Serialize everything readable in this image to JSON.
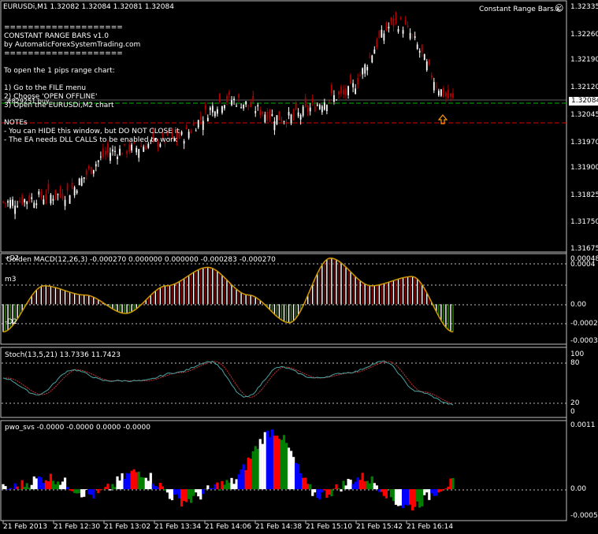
{
  "window": {
    "title": "EURUSDi,M1  1.32082 1.32084 1.32081 1.32084",
    "indicator_label": "Constant Range Bars.x",
    "smiley": "☺"
  },
  "info_text": [
    "====================",
    "    CONSTANT RANGE BARS v1.0",
    " by AutomaticForexSystemTrading.com",
    "====================",
    "",
    "To open the 1 pips range chart:",
    "",
    " 1) Go to the FILE menu",
    " 2) Choose 'OPEN OFFLINE'",
    " 3) Open the EURUSDi,M2 chart",
    "",
    "NOTEs",
    "  - You can HIDE this window, but DO NOT CLOSE it",
    "  - The EA needs DLL CALLS to be enabled to work"
  ],
  "overlay_text": "#829251 buy",
  "price_axis": [
    "1.32335",
    "1.32260",
    "1.32190",
    "1.32120",
    "1.32045",
    "1.31970",
    "1.31900",
    "1.31825",
    "1.31750",
    "1.31675"
  ],
  "current_price": "1.32084",
  "macd": {
    "title": "Golden MACD(12,26,3) -0.000270 0.000000 0.000000 -0.000283 -0.000270",
    "left_labels": [
      "+D2",
      "m3",
      "-D2"
    ],
    "axis": [
      "0.00048",
      "0.0004",
      "0.00",
      "-0.0002",
      "-0.00039"
    ]
  },
  "stoch": {
    "title": "Stoch(13,5,21) 13.7336 11.7423",
    "axis": [
      "100",
      "80",
      "20",
      "0"
    ]
  },
  "pwo": {
    "title": "pwo_svs -0.0000 -0.0000 0.0000 -0.0000",
    "axis": [
      "0.0011",
      "0.00",
      "-0.0005"
    ]
  },
  "time_axis": [
    "21 Feb 2013",
    "21 Feb 12:30",
    "21 Feb 13:02",
    "21 Feb 13:34",
    "21 Feb 14:06",
    "21 Feb 14:38",
    "21 Feb 15:10",
    "21 Feb 15:42",
    "21 Feb 16:14"
  ],
  "colors": {
    "bull": "#ffffff",
    "bear": "#b40000",
    "bid_line": "#00b400",
    "level_line": "#dc0000",
    "grid": "#c0c0c0",
    "macd_up": "#8b0000",
    "macd_down": "#2e8b00",
    "macd_line": "#cc9900",
    "stoch_main": "#4aa3a3",
    "stoch_signal": "#c03030",
    "arrow": "#ff9900"
  },
  "chart_data": [
    {
      "type": "line",
      "name": "EURUSDi,M1 price",
      "title": "EURUSDi,M1",
      "x": [
        "21 Feb 2013",
        "21 Feb 12:30",
        "21 Feb 13:02",
        "21 Feb 13:34",
        "21 Feb 14:06",
        "21 Feb 14:38",
        "21 Feb 15:10",
        "21 Feb 15:42",
        "21 Feb 16:14"
      ],
      "values": [
        1.318,
        1.3182,
        1.3194,
        1.3197,
        1.3208,
        1.3203,
        1.3209,
        1.3229,
        1.3208
      ],
      "ylim": [
        1.31675,
        1.32335
      ],
      "bid": 1.32084,
      "level": 1.3202
    },
    {
      "type": "bar",
      "title": "Golden MACD(12,26,3)",
      "values": [
        -0.0003,
        0.0002,
        0.0001,
        -0.0001,
        0.0002,
        0.0004,
        0.0001,
        -0.0002,
        0.0005,
        0.0002,
        0.0003,
        -0.0003
      ],
      "ylim": [
        -0.00039,
        0.00048
      ]
    },
    {
      "type": "line",
      "title": "Stoch(13,5,21)",
      "values": [
        60,
        30,
        75,
        55,
        55,
        70,
        90,
        25,
        80,
        60,
        70,
        90,
        35,
        12
      ],
      "ylim": [
        0,
        100
      ]
    },
    {
      "type": "bar",
      "title": "pwo_svs",
      "values": [
        0.0,
        0.0002,
        -0.0001,
        0.0003,
        -0.0002,
        0.0001,
        0.001,
        -0.0001,
        0.0002,
        -0.0003,
        0.0001
      ],
      "ylim": [
        -0.0005,
        0.0011
      ]
    }
  ]
}
